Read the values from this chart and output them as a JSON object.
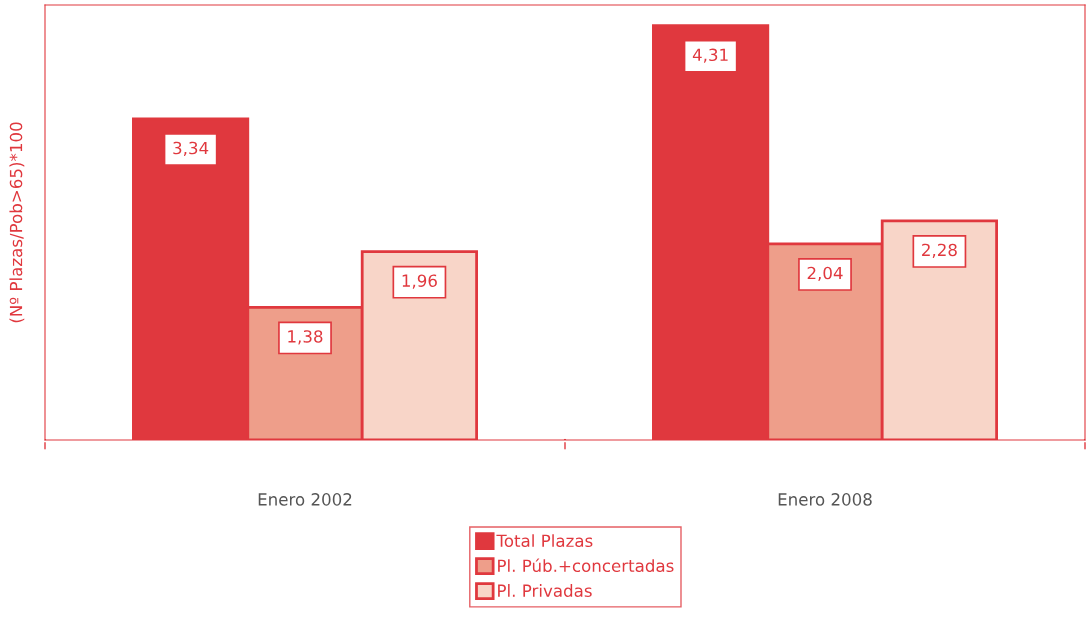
{
  "chart_data": {
    "type": "bar",
    "ylabel": "(Nº Plazas/Pob>65)*100",
    "categories": [
      "Enero 2002",
      "Enero 2008"
    ],
    "series": [
      {
        "name": "Total Plazas",
        "color": "#e0383e",
        "values": [
          3.34,
          4.31
        ],
        "value_labels": [
          "3,34",
          "4,31"
        ]
      },
      {
        "name": "Pl. Púb.+concertadas",
        "color": "#ee9e8a",
        "values": [
          1.38,
          2.04
        ],
        "value_labels": [
          "1,38",
          "2,04"
        ]
      },
      {
        "name": "Pl. Privadas",
        "color": "#f8d5c8",
        "values": [
          1.96,
          2.28
        ],
        "value_labels": [
          "1,96",
          "2,28"
        ]
      }
    ],
    "legend": "bottom",
    "grid": false
  }
}
